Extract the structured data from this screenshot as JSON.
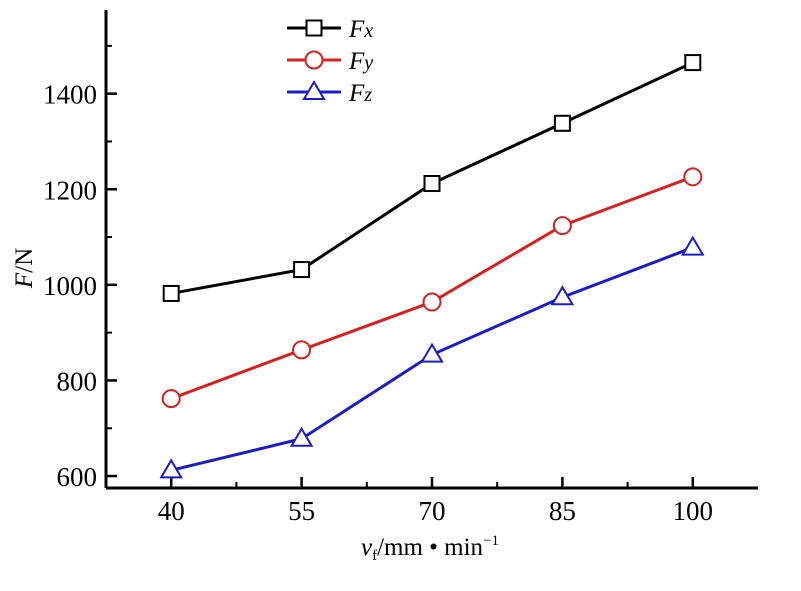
{
  "chart_data": {
    "type": "line",
    "x": [
      40,
      55,
      70,
      85,
      100
    ],
    "series": [
      {
        "name": "Fx",
        "values": [
          982,
          1032,
          1212,
          1338,
          1465
        ],
        "color": "#000000",
        "marker": "square"
      },
      {
        "name": "Fy",
        "values": [
          762,
          864,
          964,
          1124,
          1226
        ],
        "color": "#d42020",
        "marker": "circle"
      },
      {
        "name": "Fz",
        "values": [
          612,
          678,
          854,
          974,
          1078
        ],
        "color": "#1c1cc4",
        "marker": "triangle"
      }
    ],
    "xticks": [
      "40",
      "55",
      "70",
      "85",
      "100"
    ],
    "yticks": [
      "600",
      "800",
      "1000",
      "1200",
      "1400"
    ],
    "ytick_values": [
      600,
      800,
      1000,
      1200,
      1400
    ],
    "xlim": [
      32.5,
      107.5
    ],
    "ylim": [
      575,
      1575
    ],
    "xlabel": {
      "var": "v",
      "sub": "f",
      "rest": "/mm • min",
      "sup": "−1"
    },
    "ylabel": {
      "var": "F",
      "rest": "/N"
    },
    "legend": {
      "position": "top-center",
      "entries": [
        {
          "main": "F",
          "sub": "x"
        },
        {
          "main": "F",
          "sub": "y"
        },
        {
          "main": "F",
          "sub": "z"
        }
      ]
    },
    "grid": false
  }
}
